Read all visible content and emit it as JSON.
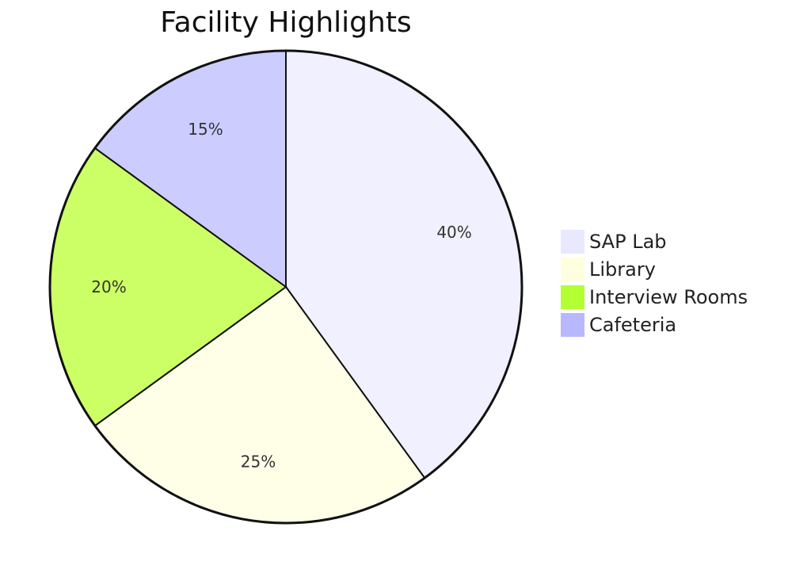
{
  "chart_data": {
    "type": "pie",
    "title": "Facility Highlights",
    "categories": [
      "SAP Lab",
      "Library",
      "Interview Rooms",
      "Cafeteria"
    ],
    "values": [
      40,
      25,
      20,
      15
    ],
    "labels": [
      "40%",
      "25%",
      "20%",
      "15%"
    ],
    "colors": [
      "#f0f0ff",
      "#ffffe8",
      "#ccff66",
      "#ccccff"
    ],
    "legend_colors": [
      "#e8e8ff",
      "#ffffe0",
      "#b3ff33",
      "#b8b8ff"
    ],
    "legend_position": "right",
    "start": "top",
    "direction": "clockwise",
    "outline_color": "#111111"
  }
}
